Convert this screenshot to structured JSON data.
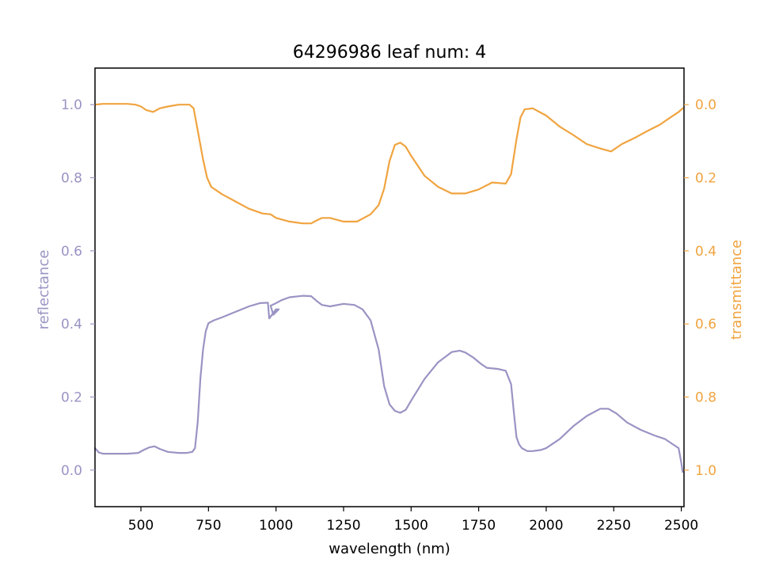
{
  "chart_data": {
    "type": "line",
    "title": "64296986 leaf num: 4",
    "xlabel": "wavelength (nm)",
    "ylabel_left": "reflectance",
    "ylabel_right": "transmittance",
    "xlim": [
      330,
      2510
    ],
    "ylim_left": [
      -0.1,
      1.1
    ],
    "ylim_right": [
      1.1,
      -0.1
    ],
    "right_axis_inverted": true,
    "x_ticks": [
      500,
      750,
      1000,
      1250,
      1500,
      1750,
      2000,
      2250,
      2500
    ],
    "x_tick_labels": [
      "500",
      "750",
      "1000",
      "1250",
      "1500",
      "1750",
      "2000",
      "2250",
      "2500"
    ],
    "y_left_ticks": [
      0.0,
      0.2,
      0.4,
      0.6,
      0.8,
      1.0
    ],
    "y_left_tick_labels": [
      "0.0",
      "0.2",
      "0.4",
      "0.6",
      "0.8",
      "1.0"
    ],
    "y_right_ticks": [
      0.0,
      0.2,
      0.4,
      0.6,
      0.8,
      1.0
    ],
    "y_right_tick_labels": [
      "0.0",
      "0.2",
      "0.4",
      "0.6",
      "0.8",
      "1.0"
    ],
    "grid": false,
    "colors": {
      "reflectance": "#9a94c4",
      "transmittance": "#f0a440",
      "axes": "#000000"
    },
    "series": [
      {
        "axis": "left",
        "color": "#9a94c4",
        "points": [
          [
            330,
            0.06
          ],
          [
            345,
            0.048
          ],
          [
            360,
            0.045
          ],
          [
            400,
            0.045
          ],
          [
            450,
            0.045
          ],
          [
            490,
            0.047
          ],
          [
            510,
            0.055
          ],
          [
            530,
            0.062
          ],
          [
            550,
            0.065
          ],
          [
            570,
            0.058
          ],
          [
            600,
            0.05
          ],
          [
            640,
            0.047
          ],
          [
            670,
            0.047
          ],
          [
            690,
            0.05
          ],
          [
            700,
            0.06
          ],
          [
            710,
            0.13
          ],
          [
            720,
            0.25
          ],
          [
            730,
            0.33
          ],
          [
            740,
            0.38
          ],
          [
            750,
            0.402
          ],
          [
            770,
            0.41
          ],
          [
            800,
            0.418
          ],
          [
            850,
            0.433
          ],
          [
            900,
            0.448
          ],
          [
            940,
            0.457
          ],
          [
            970,
            0.458
          ],
          [
            975,
            0.415
          ],
          [
            1000,
            0.44
          ],
          [
            1010,
            0.44
          ],
          [
            990,
            0.425
          ],
          [
            980,
            0.45
          ],
          [
            995,
            0.455
          ],
          [
            1020,
            0.465
          ],
          [
            1050,
            0.473
          ],
          [
            1100,
            0.477
          ],
          [
            1130,
            0.476
          ],
          [
            1150,
            0.463
          ],
          [
            1170,
            0.452
          ],
          [
            1200,
            0.448
          ],
          [
            1250,
            0.455
          ],
          [
            1290,
            0.452
          ],
          [
            1320,
            0.44
          ],
          [
            1350,
            0.41
          ],
          [
            1380,
            0.33
          ],
          [
            1400,
            0.23
          ],
          [
            1420,
            0.18
          ],
          [
            1440,
            0.162
          ],
          [
            1460,
            0.157
          ],
          [
            1480,
            0.165
          ],
          [
            1500,
            0.19
          ],
          [
            1550,
            0.25
          ],
          [
            1600,
            0.295
          ],
          [
            1650,
            0.323
          ],
          [
            1680,
            0.327
          ],
          [
            1700,
            0.322
          ],
          [
            1730,
            0.308
          ],
          [
            1760,
            0.29
          ],
          [
            1780,
            0.28
          ],
          [
            1820,
            0.277
          ],
          [
            1850,
            0.272
          ],
          [
            1870,
            0.235
          ],
          [
            1880,
            0.16
          ],
          [
            1890,
            0.09
          ],
          [
            1900,
            0.07
          ],
          [
            1910,
            0.06
          ],
          [
            1930,
            0.052
          ],
          [
            1950,
            0.052
          ],
          [
            1980,
            0.055
          ],
          [
            2000,
            0.06
          ],
          [
            2050,
            0.085
          ],
          [
            2100,
            0.12
          ],
          [
            2150,
            0.148
          ],
          [
            2200,
            0.168
          ],
          [
            2230,
            0.168
          ],
          [
            2260,
            0.155
          ],
          [
            2300,
            0.13
          ],
          [
            2350,
            0.11
          ],
          [
            2400,
            0.095
          ],
          [
            2440,
            0.085
          ],
          [
            2470,
            0.07
          ],
          [
            2490,
            0.06
          ],
          [
            2500,
            0.02
          ],
          [
            2505,
            -0.005
          ]
        ]
      },
      {
        "axis": "right",
        "color": "#f0a440",
        "points": [
          [
            330,
            0.0
          ],
          [
            360,
            -0.002
          ],
          [
            400,
            -0.002
          ],
          [
            450,
            -0.002
          ],
          [
            480,
            0.0
          ],
          [
            500,
            0.005
          ],
          [
            520,
            0.015
          ],
          [
            545,
            0.02
          ],
          [
            570,
            0.01
          ],
          [
            600,
            0.005
          ],
          [
            640,
            0.0
          ],
          [
            680,
            0.0
          ],
          [
            695,
            0.01
          ],
          [
            710,
            0.07
          ],
          [
            730,
            0.15
          ],
          [
            745,
            0.2
          ],
          [
            760,
            0.225
          ],
          [
            800,
            0.245
          ],
          [
            850,
            0.265
          ],
          [
            900,
            0.285
          ],
          [
            950,
            0.298
          ],
          [
            980,
            0.3
          ],
          [
            1000,
            0.31
          ],
          [
            1050,
            0.32
          ],
          [
            1100,
            0.325
          ],
          [
            1130,
            0.325
          ],
          [
            1150,
            0.317
          ],
          [
            1170,
            0.31
          ],
          [
            1200,
            0.31
          ],
          [
            1250,
            0.32
          ],
          [
            1300,
            0.32
          ],
          [
            1350,
            0.3
          ],
          [
            1380,
            0.275
          ],
          [
            1400,
            0.23
          ],
          [
            1420,
            0.155
          ],
          [
            1440,
            0.11
          ],
          [
            1460,
            0.104
          ],
          [
            1480,
            0.115
          ],
          [
            1500,
            0.14
          ],
          [
            1550,
            0.195
          ],
          [
            1600,
            0.225
          ],
          [
            1650,
            0.243
          ],
          [
            1700,
            0.243
          ],
          [
            1750,
            0.232
          ],
          [
            1800,
            0.213
          ],
          [
            1850,
            0.216
          ],
          [
            1870,
            0.19
          ],
          [
            1890,
            0.095
          ],
          [
            1905,
            0.035
          ],
          [
            1920,
            0.013
          ],
          [
            1950,
            0.01
          ],
          [
            2000,
            0.03
          ],
          [
            2050,
            0.06
          ],
          [
            2100,
            0.083
          ],
          [
            2150,
            0.108
          ],
          [
            2200,
            0.12
          ],
          [
            2240,
            0.128
          ],
          [
            2280,
            0.108
          ],
          [
            2330,
            0.09
          ],
          [
            2380,
            0.07
          ],
          [
            2420,
            0.055
          ],
          [
            2460,
            0.035
          ],
          [
            2490,
            0.02
          ],
          [
            2505,
            0.01
          ]
        ]
      }
    ]
  }
}
